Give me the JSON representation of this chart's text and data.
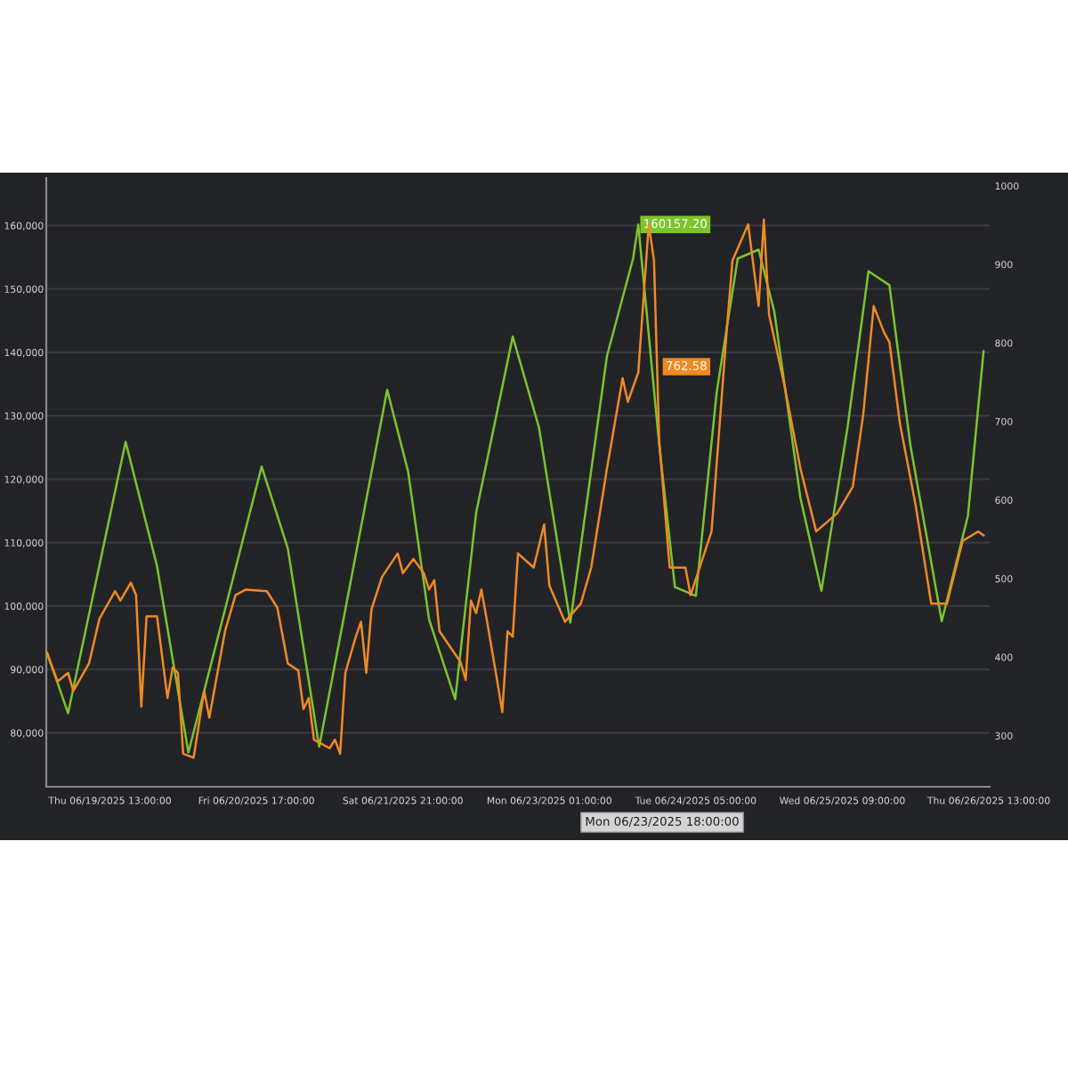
{
  "chart_data": {
    "type": "line",
    "xlim": [
      "2025-06-19T00:50",
      "2025-06-26T13:10"
    ],
    "xticks": [
      {
        "value": "2025-06-19T13:00",
        "label": "Thu 06/19/2025 13:00:00"
      },
      {
        "value": "2025-06-20T17:00",
        "label": "Fri 06/20/2025 17:00:00"
      },
      {
        "value": "2025-06-21T21:00",
        "label": "Sat 06/21/2025 21:00:00"
      },
      {
        "value": "2025-06-23T01:00",
        "label": "Mon 06/23/2025 01:00:00"
      },
      {
        "value": "2025-06-24T05:00",
        "label": "Tue 06/24/2025 05:00:00"
      },
      {
        "value": "2025-06-25T09:00",
        "label": "Wed 06/25/2025 09:00:00"
      },
      {
        "value": "2025-06-26T13:00",
        "label": "Thu 06/26/2025 13:00:00"
      }
    ],
    "ylim": [
      71500,
      167500
    ],
    "yticks": [
      {
        "value": 80000,
        "label": "80,000"
      },
      {
        "value": 90000,
        "label": "90,000"
      },
      {
        "value": 100000,
        "label": "100,000"
      },
      {
        "value": 110000,
        "label": "110,000"
      },
      {
        "value": 120000,
        "label": "120,000"
      },
      {
        "value": 130000,
        "label": "130,000"
      },
      {
        "value": 140000,
        "label": "140,000"
      },
      {
        "value": 150000,
        "label": "150,000"
      },
      {
        "value": 160000,
        "label": "160,000"
      }
    ],
    "y2lim": [
      235,
      1010
    ],
    "y2ticks": [
      300,
      400,
      500,
      600,
      700,
      800,
      900,
      1000
    ],
    "grid": "y",
    "series": [
      {
        "color": "#7cc42c",
        "x": [
          "2025-06-19T01:00",
          "2025-06-19T05:00",
          "2025-06-19T16:00",
          "2025-06-19T22:00",
          "2025-06-20T04:00",
          "2025-06-20T18:00",
          "2025-06-20T23:00",
          "2025-06-21T05:00",
          "2025-06-21T18:00",
          "2025-06-21T22:00",
          "2025-06-22T02:00",
          "2025-06-22T07:00",
          "2025-06-22T11:00",
          "2025-06-22T18:00",
          "2025-06-22T23:00",
          "2025-06-23T05:00",
          "2025-06-23T12:00",
          "2025-06-23T17:00",
          "2025-06-23T18:00",
          "2025-06-23T22:00",
          "2025-06-24T01:00",
          "2025-06-24T05:00",
          "2025-06-24T09:00",
          "2025-06-24T13:00",
          "2025-06-24T17:00",
          "2025-06-24T20:00",
          "2025-06-25T01:00",
          "2025-06-25T05:00",
          "2025-06-25T10:00",
          "2025-06-25T14:00",
          "2025-06-25T18:00",
          "2025-06-25T22:00",
          "2025-06-26T04:00",
          "2025-06-26T09:00",
          "2025-06-26T12:00"
        ],
        "values": [
          92600,
          83100,
          125900,
          106300,
          76900,
          122000,
          109100,
          77800,
          134100,
          121200,
          97900,
          85300,
          114700,
          142500,
          128200,
          97400,
          139400,
          154800,
          160157.2,
          125400,
          103000,
          101600,
          133800,
          154800,
          156200,
          146400,
          117000,
          102400,
          128200,
          152800,
          150600,
          125400,
          97600,
          114200,
          140200
        ]
      },
      {
        "color": "#f08a24",
        "axis": "y2",
        "x": [
          "2025-06-19T01:00",
          "2025-06-19T03:00",
          "2025-06-19T05:00",
          "2025-06-19T06:00",
          "2025-06-19T09:00",
          "2025-06-19T11:00",
          "2025-06-19T14:00",
          "2025-06-19T15:00",
          "2025-06-19T17:00",
          "2025-06-19T18:00",
          "2025-06-19T19:00",
          "2025-06-19T20:00",
          "2025-06-19T22:00",
          "2025-06-20T00:00",
          "2025-06-20T01:00",
          "2025-06-20T02:00",
          "2025-06-20T03:00",
          "2025-06-20T05:00",
          "2025-06-20T07:00",
          "2025-06-20T08:00",
          "2025-06-20T11:00",
          "2025-06-20T13:00",
          "2025-06-20T15:00",
          "2025-06-20T19:00",
          "2025-06-20T21:00",
          "2025-06-20T23:00",
          "2025-06-21T01:00",
          "2025-06-21T02:00",
          "2025-06-21T03:00",
          "2025-06-21T04:00",
          "2025-06-21T07:00",
          "2025-06-21T08:00",
          "2025-06-21T09:00",
          "2025-06-21T10:00",
          "2025-06-21T12:00",
          "2025-06-21T13:00",
          "2025-06-21T14:00",
          "2025-06-21T15:00",
          "2025-06-21T17:00",
          "2025-06-21T20:00",
          "2025-06-21T21:00",
          "2025-06-21T23:00",
          "2025-06-22T01:00",
          "2025-06-22T02:00",
          "2025-06-22T03:00",
          "2025-06-22T04:00",
          "2025-06-22T08:00",
          "2025-06-22T09:00",
          "2025-06-22T10:00",
          "2025-06-22T11:00",
          "2025-06-22T12:00",
          "2025-06-22T13:00",
          "2025-06-22T15:00",
          "2025-06-22T16:00",
          "2025-06-22T17:00",
          "2025-06-22T18:00",
          "2025-06-22T19:00",
          "2025-06-22T22:00",
          "2025-06-23T00:00",
          "2025-06-23T01:00",
          "2025-06-23T04:00",
          "2025-06-23T07:00",
          "2025-06-23T09:00",
          "2025-06-23T12:00",
          "2025-06-23T15:00",
          "2025-06-23T16:00",
          "2025-06-23T18:00",
          "2025-06-23T20:00",
          "2025-06-23T21:00",
          "2025-06-23T22:00",
          "2025-06-24T00:00",
          "2025-06-24T03:00",
          "2025-06-24T04:00",
          "2025-06-24T08:00",
          "2025-06-24T11:00",
          "2025-06-24T12:00",
          "2025-06-24T15:00",
          "2025-06-24T17:00",
          "2025-06-24T18:00",
          "2025-06-24T19:00",
          "2025-06-24T22:00",
          "2025-06-25T01:00",
          "2025-06-25T04:00",
          "2025-06-25T08:00",
          "2025-06-25T11:00",
          "2025-06-25T13:00",
          "2025-06-25T15:00",
          "2025-06-25T17:00",
          "2025-06-25T18:00",
          "2025-06-25T20:00",
          "2025-06-25T23:00",
          "2025-06-26T02:00",
          "2025-06-26T05:00",
          "2025-06-26T08:00",
          "2025-06-26T11:00",
          "2025-06-26T12:00"
        ],
        "values": [
          405,
          369,
          380,
          357,
          392,
          449,
          484,
          472,
          495,
          479,
          337,
          452,
          452,
          348,
          387,
          380,
          277,
          272,
          357,
          323,
          433,
          479,
          486,
          484,
          463,
          392,
          383,
          334,
          348,
          295,
          284,
          295,
          277,
          380,
          426,
          445,
          380,
          461,
          502,
          532,
          507,
          525,
          507,
          486,
          498,
          433,
          394,
          371,
          472,
          456,
          486,
          449,
          371,
          330,
          433,
          426,
          532,
          514,
          569,
          491,
          445,
          468,
          514,
          640,
          755,
          725,
          762.58,
          951,
          905,
          675,
          514,
          514,
          479,
          560,
          824,
          905,
          951,
          847,
          957,
          836,
          744,
          640,
          560,
          583,
          617,
          709,
          847,
          813,
          801,
          698,
          594,
          468,
          468,
          548,
          560,
          555
        ]
      }
    ],
    "annotations": [
      {
        "text": "160157.20",
        "x": "2025-06-23T18:00",
        "y": 160157.2
      },
      "762.58",
      "Mon 06/23/2025 18:00:00"
    ]
  }
}
